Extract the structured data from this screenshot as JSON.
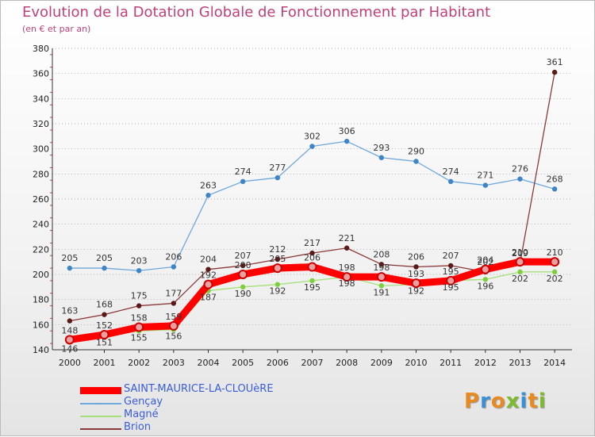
{
  "header": {
    "title": "Evolution de la Dotation Globale de Fonctionnement par Habitant",
    "subtitle": "(en € et par an)"
  },
  "logo": {
    "text": "Proxiti",
    "colors": [
      "#e98a1f",
      "#3a8fd6",
      "#e98a1f",
      "#7dbb2e",
      "#3a8fd6",
      "#e98a1f",
      "#7dbb2e"
    ]
  },
  "chart_data": {
    "type": "line",
    "title": "Evolution de la Dotation Globale de Fonctionnement par Habitant",
    "ylabel": "(en € et par an)",
    "xlabel": "",
    "ylim": [
      140,
      380
    ],
    "yticks": [
      140,
      160,
      180,
      200,
      220,
      240,
      260,
      280,
      300,
      320,
      340,
      360,
      380
    ],
    "categories": [
      "2000",
      "2001",
      "2002",
      "2003",
      "2004",
      "2005",
      "2006",
      "2007",
      "2008",
      "2009",
      "2010",
      "2011",
      "2012",
      "2013",
      "2014"
    ],
    "grid": "horizontal dotted",
    "legend_position": "bottom-left",
    "series": [
      {
        "name": "SAINT-MAURICE-LA-CLOUèRE",
        "color": "#ff0000",
        "marker": "#e8a0a0",
        "width": "thick",
        "values": [
          148,
          152,
          158,
          159,
          192,
          200,
          205,
          206,
          198,
          198,
          193,
          195,
          204,
          210,
          210
        ]
      },
      {
        "name": "Gençay",
        "color": "#6fa8dc",
        "marker": "#3d85c6",
        "width": "thin",
        "values": [
          205,
          205,
          203,
          206,
          263,
          274,
          277,
          302,
          306,
          293,
          290,
          274,
          271,
          276,
          268
        ]
      },
      {
        "name": "Magné",
        "color": "#a6e07a",
        "marker": "#7ccf3d",
        "width": "thin",
        "values": [
          146,
          151,
          155,
          156,
          187,
          190,
          192,
          195,
          198,
          191,
          192,
          195,
          196,
          202,
          202
        ]
      },
      {
        "name": "Brion",
        "color": "#8b3a3a",
        "marker": "#5a1a1a",
        "width": "thin",
        "values": [
          163,
          168,
          175,
          177,
          204,
          207,
          212,
          217,
          221,
          208,
          206,
          207,
          202,
          209,
          361
        ]
      }
    ]
  }
}
